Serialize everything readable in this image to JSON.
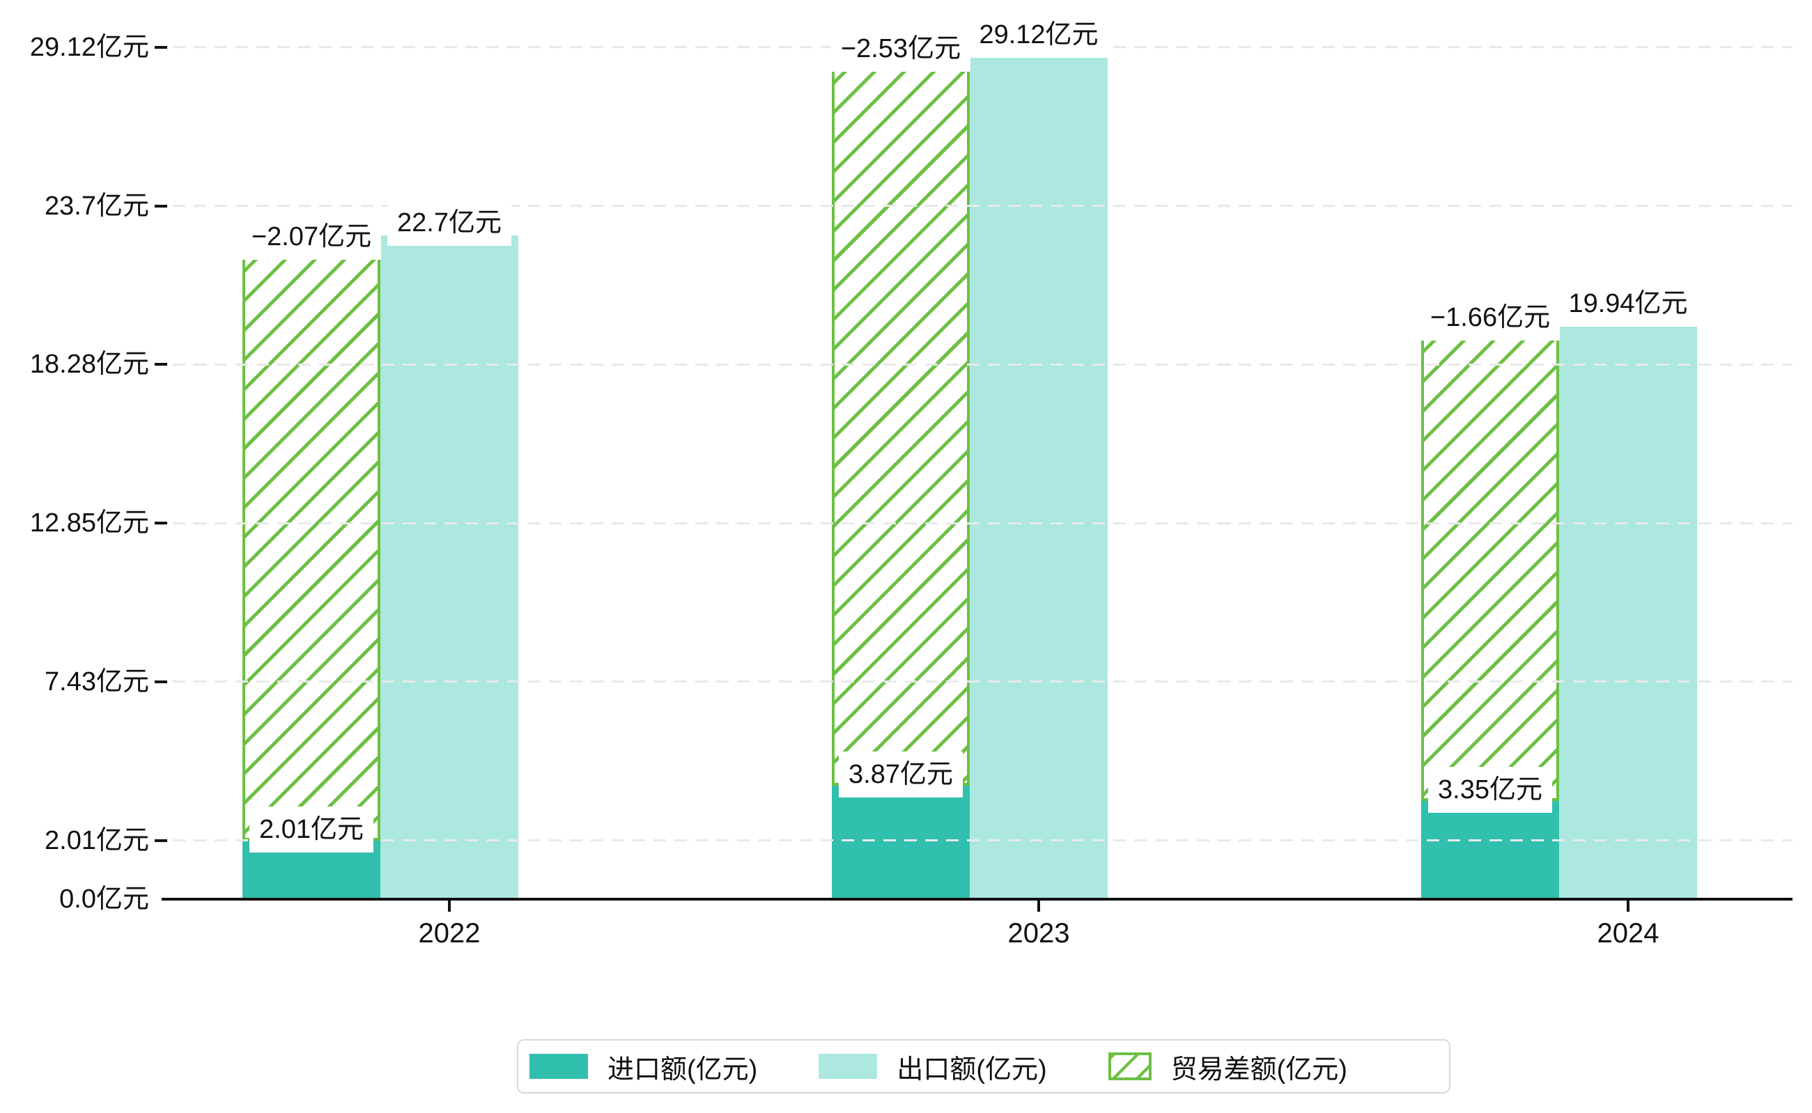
{
  "chart_data": {
    "type": "bar",
    "title": "",
    "unit": "亿元",
    "categories": [
      "2022",
      "2023",
      "2024"
    ],
    "series": [
      {
        "name": "进口额(亿元)",
        "values": [
          2.01,
          3.87,
          3.35
        ],
        "color": "#31bfae",
        "style": "solid"
      },
      {
        "name": "出口额(亿元)",
        "values": [
          22.7,
          29.12,
          19.94
        ],
        "color": "#ace8e0",
        "style": "solid"
      },
      {
        "name": "贸易差额(亿元)",
        "values": [
          -2.07,
          -2.53,
          -1.66
        ],
        "color": "#6cc044",
        "style": "hatched"
      }
    ],
    "annotations": {
      "import_labels": [
        "2.01亿元",
        "3.87亿元",
        "3.35亿元"
      ],
      "export_labels": [
        "22.7亿元",
        "29.12亿元",
        "19.94亿元"
      ],
      "balance_labels": [
        "−2.07亿元",
        "−2.53亿元",
        "−1.66亿元"
      ]
    },
    "y_axis": {
      "ticks": [
        0.0,
        2.01,
        7.43,
        12.85,
        18.28,
        23.7,
        29.12
      ],
      "tick_labels": [
        "0.0亿元",
        "2.01亿元",
        "7.43亿元",
        "12.85亿元",
        "18.28亿元",
        "23.7亿元",
        "29.12亿元"
      ],
      "range": [
        0,
        29.12
      ]
    },
    "x_axis": {
      "tick_labels": [
        "2022",
        "2023",
        "2024"
      ]
    },
    "legend": {
      "position": "bottom",
      "items": [
        "进口额(亿元)",
        "出口额(亿元)",
        "贸易差额(亿元)"
      ]
    },
    "grid": true,
    "colors": {
      "import": "#31bfae",
      "export": "#ace8e0",
      "balance": "#6cc044",
      "gridline": "#e9e9e9",
      "axis": "#111111",
      "background": "#ffffff"
    }
  }
}
